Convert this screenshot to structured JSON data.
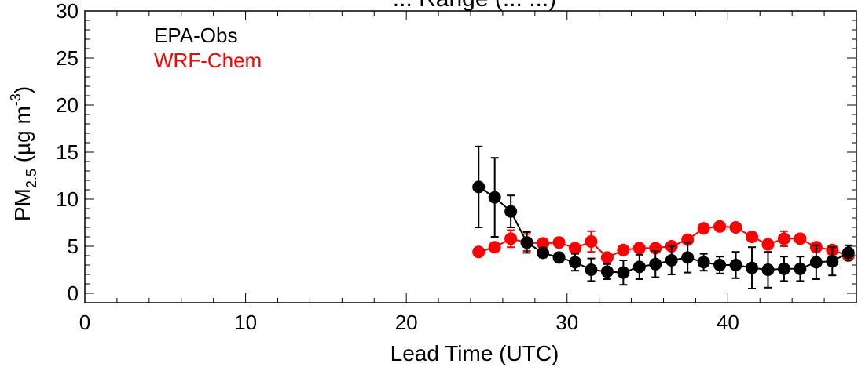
{
  "chart_data": {
    "type": "line",
    "title": "... Range (... ...)",
    "xlabel": "Lead Time (UTC)",
    "ylabel_main": "PM",
    "ylabel_sub": "2.5",
    "ylabel_rest": " (µg m",
    "ylabel_sup": "-3",
    "ylabel_close": ")",
    "xlim": [
      0,
      48
    ],
    "ylim": [
      -1,
      30
    ],
    "x_ticks": [
      0,
      10,
      20,
      30,
      40
    ],
    "x_tick_labels": [
      "0",
      "10",
      "20",
      "30",
      "40"
    ],
    "y_ticks": [
      0,
      5,
      10,
      15,
      20,
      25,
      30
    ],
    "y_tick_labels": [
      "0",
      "5",
      "10",
      "15",
      "20",
      "25",
      "30"
    ],
    "legend": {
      "placement": "top-left",
      "entries": [
        {
          "label": "EPA-Obs",
          "color": "#000000"
        },
        {
          "label": "WRF-Chem",
          "color": "#ff0000"
        }
      ]
    },
    "series": [
      {
        "name": "EPA-Obs",
        "color": "#000000",
        "x": [
          24.5,
          25.5,
          26.5,
          27.5,
          28.5,
          29.5,
          30.5,
          31.5,
          32.5,
          33.5,
          34.5,
          35.5,
          36.5,
          37.5,
          38.5,
          39.5,
          40.5,
          41.5,
          42.5,
          43.5,
          44.5,
          45.5,
          46.5,
          47.5
        ],
        "y": [
          11.3,
          10.2,
          8.7,
          5.4,
          4.3,
          3.8,
          3.3,
          2.5,
          2.3,
          2.2,
          2.8,
          3.1,
          3.5,
          3.8,
          3.3,
          3.0,
          3.0,
          2.7,
          2.5,
          2.6,
          2.6,
          3.3,
          3.4,
          4.3
        ],
        "err": [
          4.3,
          4.2,
          1.7,
          1.1,
          0.5,
          0.5,
          0.9,
          1.2,
          0.8,
          1.3,
          1.3,
          1.4,
          1.5,
          1.6,
          0.9,
          0.9,
          1.4,
          2.2,
          1.9,
          1.3,
          1.3,
          1.8,
          1.5,
          0.8
        ]
      },
      {
        "name": "WRF-Chem",
        "color": "#ff0000",
        "x": [
          24.5,
          25.5,
          26.5,
          27.5,
          28.5,
          29.5,
          30.5,
          31.5,
          32.5,
          33.5,
          34.5,
          35.5,
          36.5,
          37.5,
          38.5,
          39.5,
          40.5,
          41.5,
          42.5,
          43.5,
          44.5,
          45.5,
          46.5,
          47.5
        ],
        "y": [
          4.4,
          4.9,
          5.8,
          5.4,
          5.3,
          5.4,
          4.8,
          5.5,
          3.8,
          4.6,
          4.8,
          4.8,
          5.0,
          5.7,
          6.9,
          7.1,
          7.0,
          6.0,
          5.2,
          5.8,
          5.8,
          4.9,
          4.6,
          4.0
        ],
        "err": [
          0.2,
          0.3,
          0.9,
          0.9,
          0.5,
          0.5,
          0.4,
          1.1,
          0.3,
          0.3,
          0.3,
          0.3,
          0.3,
          0.4,
          0.3,
          0.3,
          0.3,
          0.4,
          0.4,
          0.8,
          0.4,
          0.3,
          0.3,
          0.4
        ]
      }
    ]
  }
}
